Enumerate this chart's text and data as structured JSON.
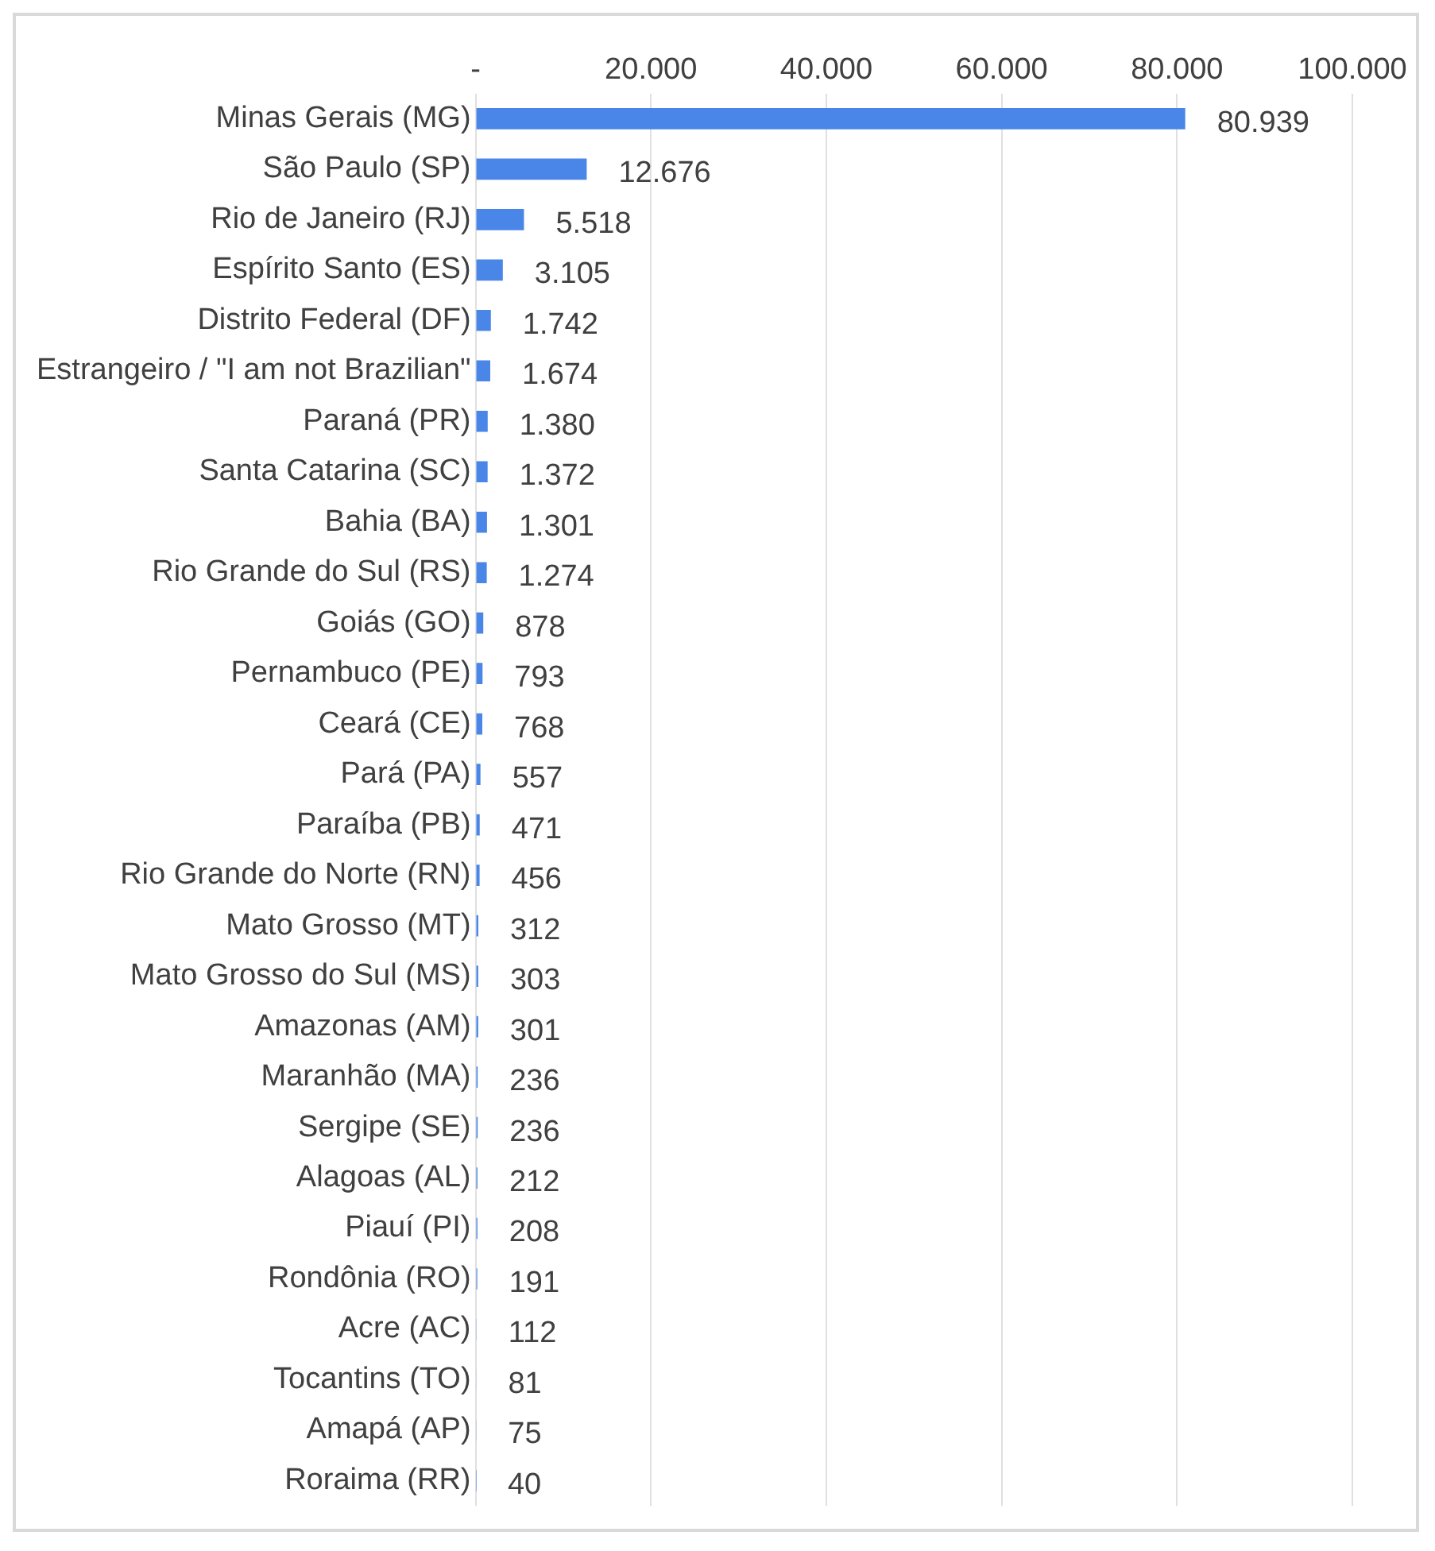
{
  "chart_data": {
    "type": "bar",
    "orientation": "horizontal",
    "categories": [
      "Minas Gerais (MG)",
      "São Paulo (SP)",
      "Rio de Janeiro (RJ)",
      "Espírito Santo (ES)",
      "Distrito Federal (DF)",
      "Estrangeiro / \"I am not Brazilian\"",
      "Paraná (PR)",
      "Santa Catarina (SC)",
      "Bahia (BA)",
      "Rio Grande do Sul (RS)",
      "Goiás (GO)",
      "Pernambuco (PE)",
      "Ceará (CE)",
      "Pará (PA)",
      "Paraíba (PB)",
      "Rio Grande do Norte (RN)",
      "Mato Grosso (MT)",
      "Mato Grosso do Sul (MS)",
      "Amazonas (AM)",
      "Maranhão (MA)",
      "Sergipe (SE)",
      "Alagoas (AL)",
      "Piauí (PI)",
      "Rondônia (RO)",
      "Acre (AC)",
      "Tocantins (TO)",
      "Amapá (AP)",
      "Roraima (RR)"
    ],
    "values": [
      80939,
      12676,
      5518,
      3105,
      1742,
      1674,
      1380,
      1372,
      1301,
      1274,
      878,
      793,
      768,
      557,
      471,
      456,
      312,
      303,
      301,
      236,
      236,
      212,
      208,
      191,
      112,
      81,
      75,
      40
    ],
    "value_labels": [
      "80.939",
      "12.676",
      "5.518",
      "3.105",
      "1.742",
      "1.674",
      "1.380",
      "1.372",
      "1.301",
      "1.274",
      "878",
      "793",
      "768",
      "557",
      "471",
      "456",
      "312",
      "303",
      "301",
      "236",
      "236",
      "212",
      "208",
      "191",
      "112",
      "81",
      "75",
      "40"
    ],
    "color": "#4a86e8",
    "xlim": [
      0,
      100000
    ],
    "xticks": [
      {
        "value": 0,
        "label": "-"
      },
      {
        "value": 20000,
        "label": "20.000"
      },
      {
        "value": 40000,
        "label": "40.000"
      },
      {
        "value": 60000,
        "label": "60.000"
      },
      {
        "value": 80000,
        "label": "80.000"
      },
      {
        "value": 100000,
        "label": "100.000"
      }
    ],
    "grid": "x"
  }
}
